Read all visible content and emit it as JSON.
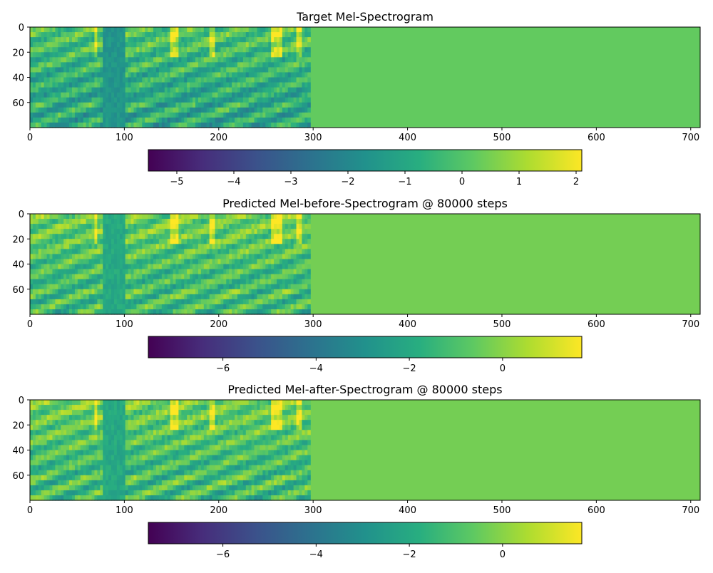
{
  "chart_data": [
    {
      "type": "heatmap",
      "title": "Target Mel-Spectrogram",
      "xlim": [
        0,
        710
      ],
      "ylim": [
        80,
        0
      ],
      "x_ticks": [
        "0",
        "100",
        "200",
        "300",
        "400",
        "500",
        "600",
        "700"
      ],
      "y_ticks": [
        "0",
        "20",
        "40",
        "60"
      ],
      "colormap": "viridis",
      "voiced_frames": [
        0,
        297
      ],
      "padding_value": 0.25,
      "colorbar": {
        "range": [
          -5.5,
          2.1
        ],
        "ticks": [
          "−5",
          "−4",
          "−3",
          "−2",
          "−1",
          "0",
          "1",
          "2"
        ],
        "orientation": "horizontal"
      }
    },
    {
      "type": "heatmap",
      "title": "Predicted Mel-before-Spectrogram @ 80000 steps",
      "xlim": [
        0,
        710
      ],
      "ylim": [
        80,
        0
      ],
      "x_ticks": [
        "0",
        "100",
        "200",
        "300",
        "400",
        "500",
        "600",
        "700"
      ],
      "y_ticks": [
        "0",
        "20",
        "40",
        "60"
      ],
      "colormap": "viridis",
      "voiced_frames": [
        0,
        297
      ],
      "padding_value": -0.3,
      "colorbar": {
        "range": [
          -7.6,
          1.7
        ],
        "ticks": [
          "−6",
          "−4",
          "−2",
          "0"
        ],
        "orientation": "horizontal"
      }
    },
    {
      "type": "heatmap",
      "title": "Predicted Mel-after-Spectrogram @ 80000 steps",
      "xlim": [
        0,
        710
      ],
      "ylim": [
        80,
        0
      ],
      "x_ticks": [
        "0",
        "100",
        "200",
        "300",
        "400",
        "500",
        "600",
        "700"
      ],
      "y_ticks": [
        "0",
        "20",
        "40",
        "60"
      ],
      "colormap": "viridis",
      "voiced_frames": [
        0,
        297
      ],
      "padding_value": -0.3,
      "colorbar": {
        "range": [
          -7.6,
          1.7
        ],
        "ticks": [
          "−6",
          "−4",
          "−2",
          "0"
        ],
        "orientation": "horizontal"
      }
    }
  ]
}
